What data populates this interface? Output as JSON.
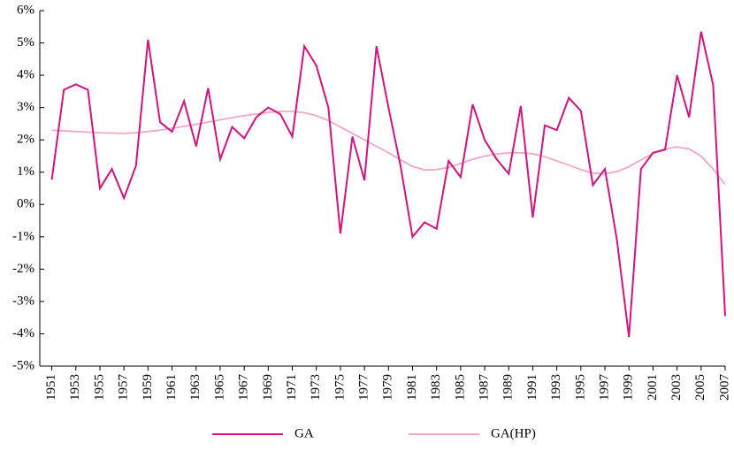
{
  "chart_data": {
    "type": "line",
    "x": [
      1951,
      1952,
      1953,
      1954,
      1955,
      1956,
      1957,
      1958,
      1959,
      1960,
      1961,
      1962,
      1963,
      1964,
      1965,
      1966,
      1967,
      1968,
      1969,
      1970,
      1971,
      1972,
      1973,
      1974,
      1975,
      1976,
      1977,
      1978,
      1979,
      1980,
      1981,
      1982,
      1983,
      1984,
      1985,
      1986,
      1987,
      1988,
      1989,
      1990,
      1991,
      1992,
      1993,
      1994,
      1995,
      1996,
      1997,
      1998,
      1999,
      2000,
      2001,
      2002,
      2003,
      2004,
      2005,
      2006,
      2007
    ],
    "series": [
      {
        "name": "GA",
        "color": "#d6127f",
        "values": [
          0.77,
          3.55,
          3.72,
          3.55,
          0.5,
          1.1,
          0.2,
          1.2,
          5.1,
          2.55,
          2.25,
          3.2,
          1.8,
          3.6,
          1.4,
          2.4,
          2.05,
          2.7,
          3.0,
          2.8,
          2.1,
          4.9,
          4.3,
          3.0,
          -0.9,
          2.1,
          0.75,
          4.9,
          3.0,
          1.2,
          -1.0,
          -0.55,
          -0.75,
          1.35,
          0.85,
          3.1,
          2.0,
          1.4,
          0.95,
          3.05,
          -0.4,
          2.45,
          2.3,
          3.3,
          2.9,
          0.6,
          1.1,
          -1.1,
          -4.1,
          1.1,
          1.6,
          1.7,
          4.0,
          2.7,
          5.35,
          3.7,
          -3.45
        ]
      },
      {
        "name": "GA(HP)",
        "color": "#f4a6c8",
        "values": [
          2.3,
          2.28,
          2.26,
          2.24,
          2.22,
          2.21,
          2.2,
          2.22,
          2.26,
          2.3,
          2.36,
          2.42,
          2.48,
          2.55,
          2.62,
          2.69,
          2.75,
          2.8,
          2.85,
          2.88,
          2.88,
          2.84,
          2.75,
          2.6,
          2.4,
          2.2,
          2.0,
          1.8,
          1.6,
          1.38,
          1.18,
          1.07,
          1.08,
          1.15,
          1.27,
          1.4,
          1.5,
          1.56,
          1.6,
          1.6,
          1.57,
          1.48,
          1.35,
          1.22,
          1.08,
          0.97,
          0.95,
          1.02,
          1.17,
          1.38,
          1.58,
          1.72,
          1.78,
          1.72,
          1.5,
          1.1,
          0.62
        ]
      }
    ],
    "xlim": [
      1950,
      2007
    ],
    "xticks": [
      1951,
      1953,
      1955,
      1957,
      1959,
      1961,
      1963,
      1965,
      1967,
      1969,
      1971,
      1973,
      1975,
      1977,
      1979,
      1981,
      1983,
      1985,
      1987,
      1989,
      1991,
      1993,
      1995,
      1997,
      1999,
      2001,
      2003,
      2005,
      2007
    ],
    "ylim": [
      -5,
      6
    ],
    "yticks": [
      {
        "value": -5,
        "label": "-5%"
      },
      {
        "value": -4,
        "label": "-4%"
      },
      {
        "value": -3,
        "label": "-3%"
      },
      {
        "value": -2,
        "label": "-2%"
      },
      {
        "value": -1,
        "label": "-1%"
      },
      {
        "value": 0,
        "label": "0%"
      },
      {
        "value": 1,
        "label": "1%"
      },
      {
        "value": 2,
        "label": "2%"
      },
      {
        "value": 3,
        "label": "3%"
      },
      {
        "value": 4,
        "label": "4%"
      },
      {
        "value": 5,
        "label": "5%"
      },
      {
        "value": 6,
        "label": "6%"
      }
    ]
  }
}
